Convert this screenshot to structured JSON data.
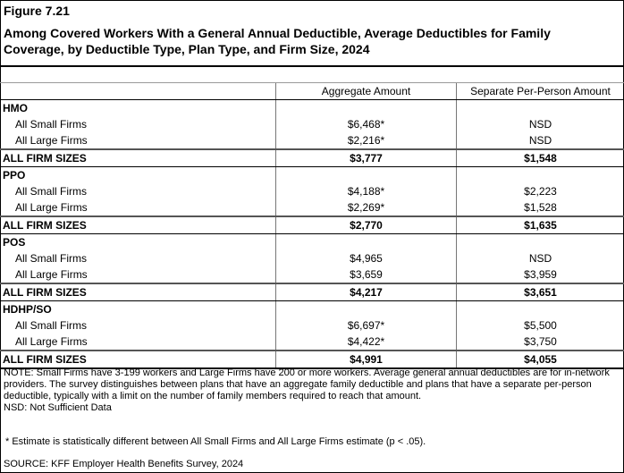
{
  "figure_label": "Figure 7.21",
  "title": "Among Covered Workers With a General Annual Deductible, Average Deductibles for Family Coverage, by Deductible Type, Plan Type, and Firm Size, 2024",
  "columns": [
    "",
    "Aggregate Amount",
    "Separate Per-Person Amount"
  ],
  "groups": [
    {
      "plan": "HMO",
      "rows": [
        {
          "label": "All Small Firms",
          "aggregate": "$6,468*",
          "per_person": "NSD"
        },
        {
          "label": "All Large Firms",
          "aggregate": "$2,216*",
          "per_person": "NSD"
        }
      ],
      "total": {
        "label": "ALL FIRM SIZES",
        "aggregate": "$3,777",
        "per_person": "$1,548"
      }
    },
    {
      "plan": "PPO",
      "rows": [
        {
          "label": "All Small Firms",
          "aggregate": "$4,188*",
          "per_person": "$2,223"
        },
        {
          "label": "All Large Firms",
          "aggregate": "$2,269*",
          "per_person": "$1,528"
        }
      ],
      "total": {
        "label": "ALL FIRM SIZES",
        "aggregate": "$2,770",
        "per_person": "$1,635"
      }
    },
    {
      "plan": "POS",
      "rows": [
        {
          "label": "All Small Firms",
          "aggregate": "$4,965",
          "per_person": "NSD"
        },
        {
          "label": "All Large Firms",
          "aggregate": "$3,659",
          "per_person": "$3,959"
        }
      ],
      "total": {
        "label": "ALL FIRM SIZES",
        "aggregate": "$4,217",
        "per_person": "$3,651"
      }
    },
    {
      "plan": "HDHP/SO",
      "rows": [
        {
          "label": "All Small Firms",
          "aggregate": "$6,697*",
          "per_person": "$5,500"
        },
        {
          "label": "All Large Firms",
          "aggregate": "$4,422*",
          "per_person": "$3,750"
        }
      ],
      "total": {
        "label": "ALL FIRM SIZES",
        "aggregate": "$4,991",
        "per_person": "$4,055"
      }
    }
  ],
  "note": "NOTE: Small Firms have 3-199 workers and Large Firms have 200 or more workers. Average general annual deductibles are for in-network providers. The survey distinguishes between plans that have an aggregate family deductible and plans that have a separate per-person deductible, typically with a limit on the number of family members required to reach that amount.",
  "nsd_note": "NSD: Not Sufficient Data",
  "footnote": "* Estimate is statistically different between All Small Firms and All Large Firms estimate (p < .05).",
  "source": "SOURCE: KFF Employer Health Benefits Survey, 2024"
}
